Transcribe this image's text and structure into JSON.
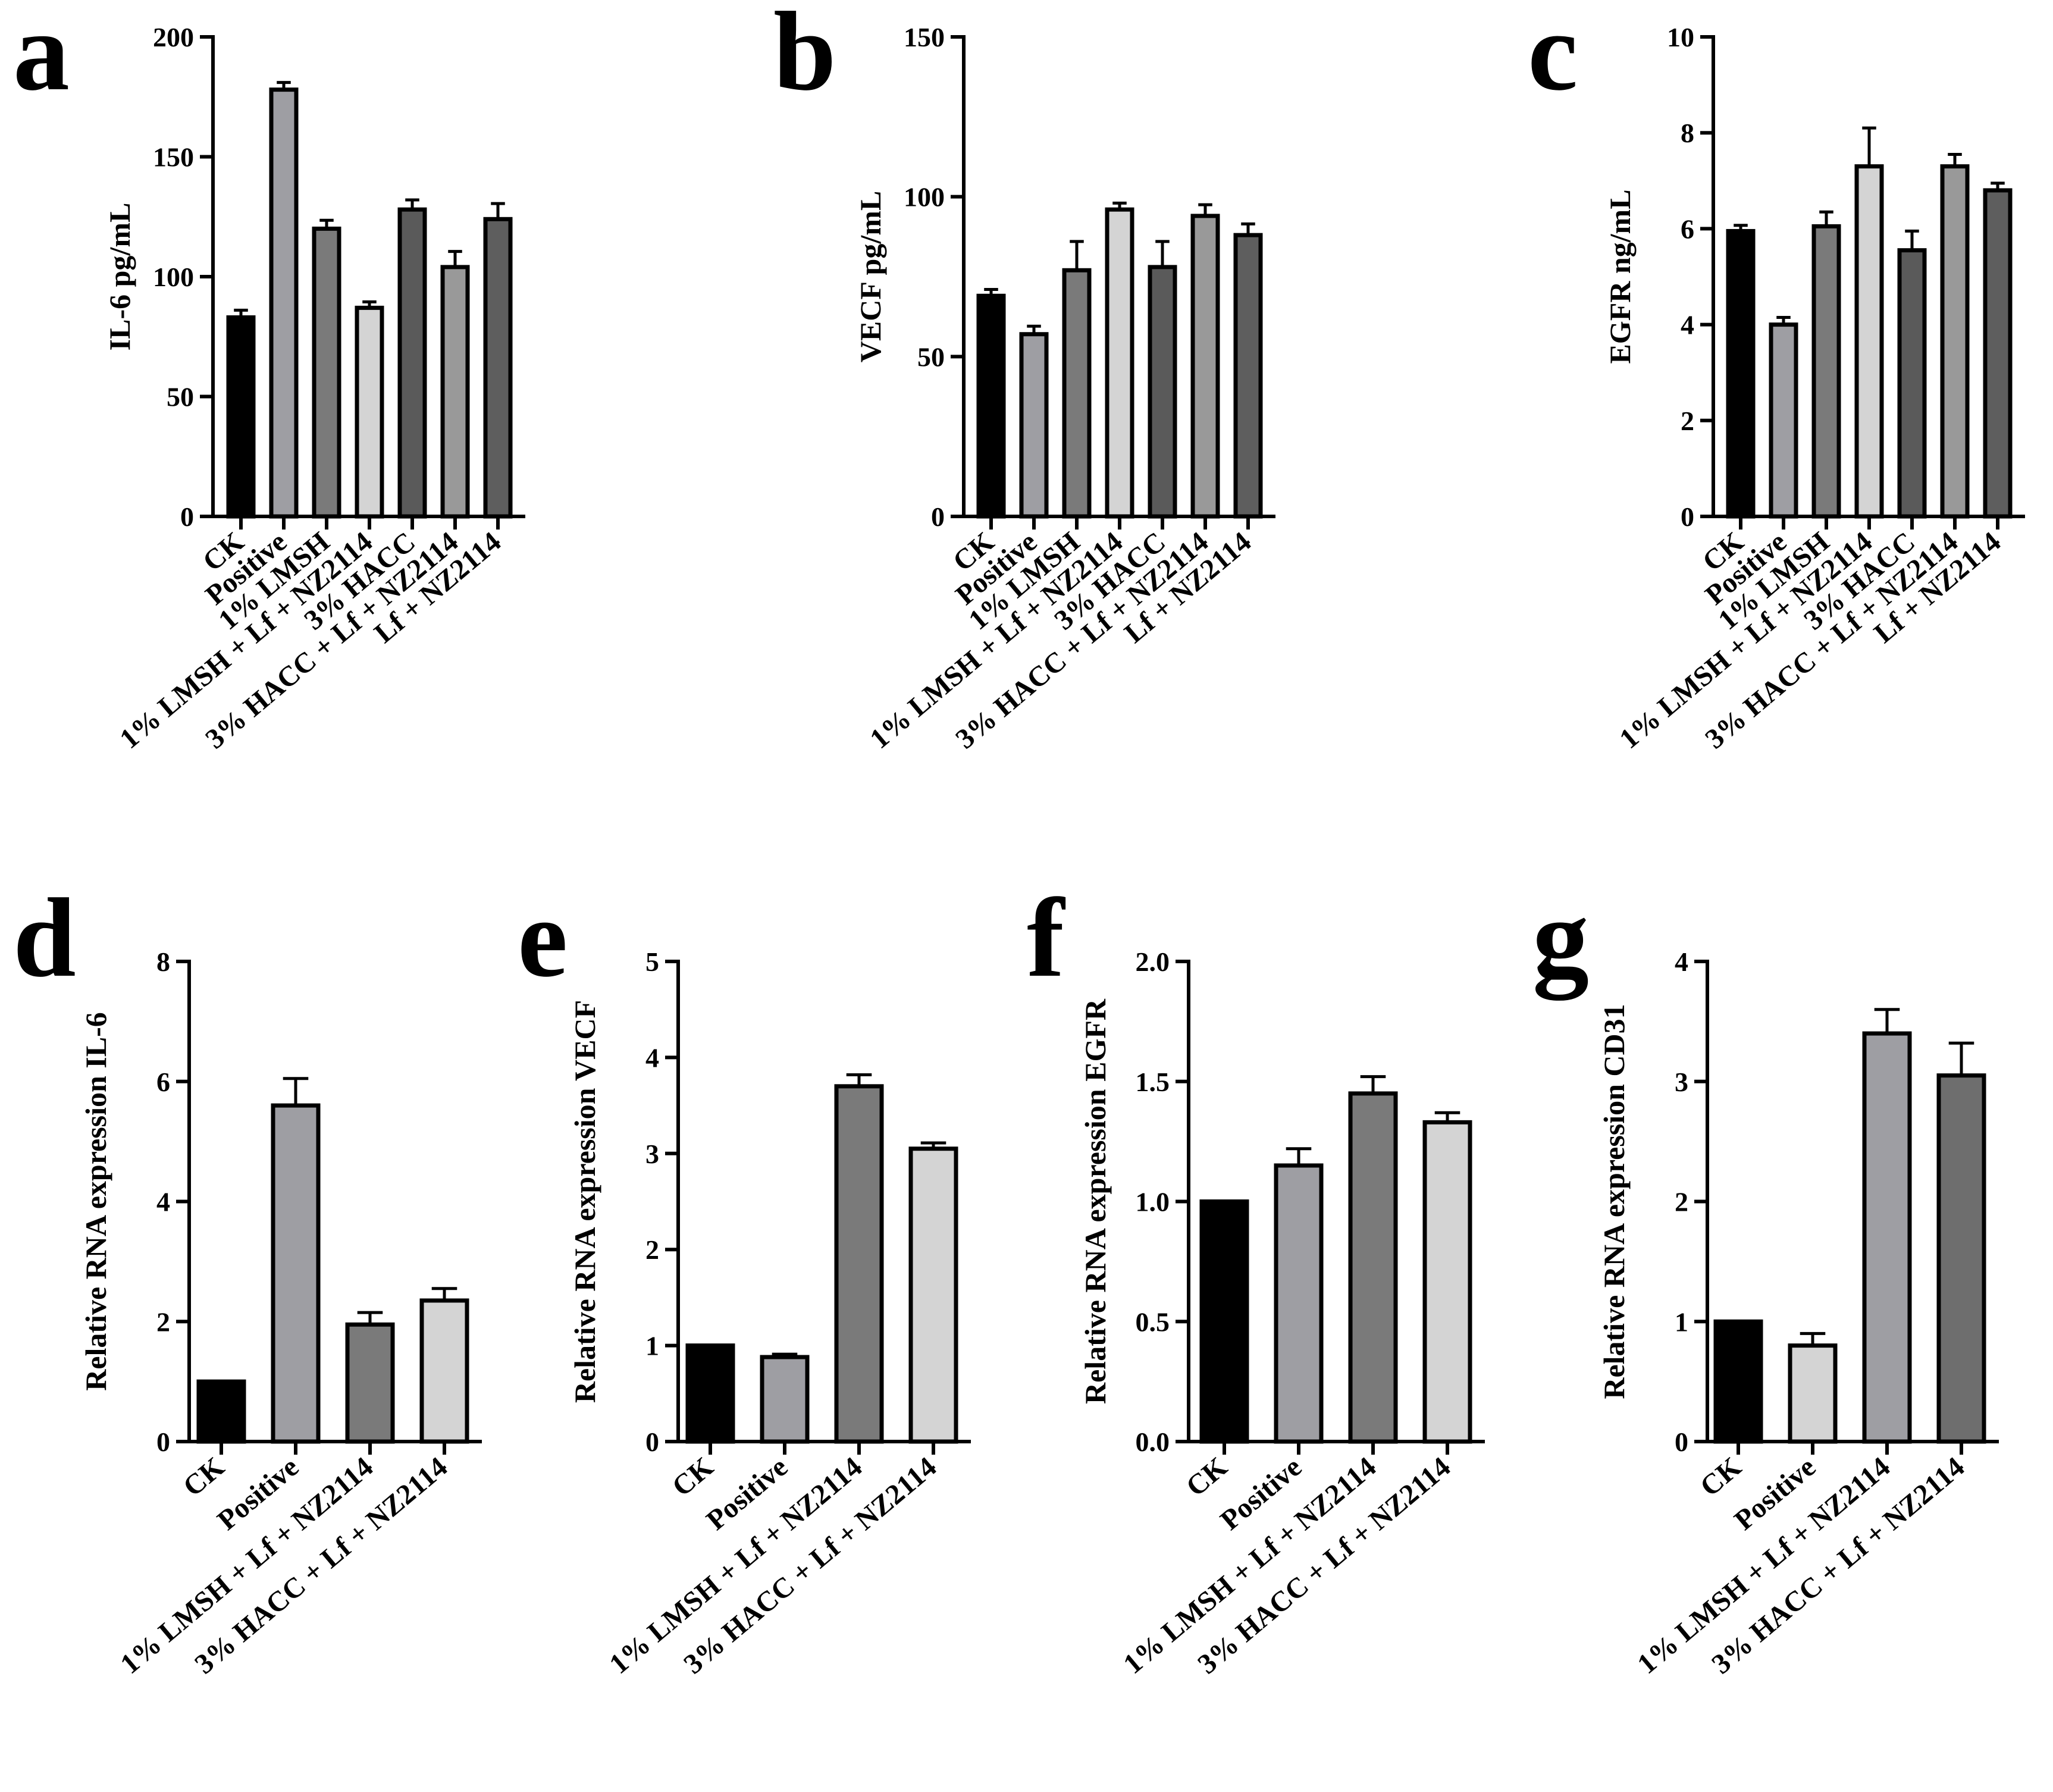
{
  "chart_data": [
    {
      "panel": "a",
      "type": "bar",
      "ylabel": "IL-6 pg/mL",
      "ylim": [
        0,
        200
      ],
      "yticks": [
        "0",
        "50",
        "100",
        "150",
        "200"
      ],
      "categories": [
        "CK",
        "Positive",
        "1% LMSH",
        "1% LMSH + Lf + NZ2114",
        "3% HACC",
        "3% HACC + Lf + NZ2114",
        "Lf + NZ2114"
      ],
      "values": [
        83,
        178,
        120,
        87,
        128,
        104,
        124
      ],
      "errors": [
        3,
        3,
        3.5,
        2.5,
        4,
        6.5,
        6.5
      ],
      "colors": [
        "#000000",
        "#9e9ea3",
        "#7a7a7a",
        "#d4d4d4",
        "#5a5a5a",
        "#999999",
        "#5e5e5e"
      ]
    },
    {
      "panel": "b",
      "type": "bar",
      "ylabel": "VECF pg/mL",
      "ylim": [
        0,
        150
      ],
      "yticks": [
        "0",
        "50",
        "100",
        "150"
      ],
      "categories": [
        "CK",
        "Positive",
        "1% LMSH",
        "1% LMSH + Lf + NZ2114",
        "3% HACC",
        "3% HACC + Lf + NZ2114",
        "Lf + NZ2114"
      ],
      "values": [
        69,
        57,
        77,
        96,
        78,
        94,
        88
      ],
      "errors": [
        2,
        2.5,
        9,
        2,
        8,
        3.5,
        3.5
      ],
      "colors": [
        "#000000",
        "#9e9ea3",
        "#7a7a7a",
        "#d4d4d4",
        "#5a5a5a",
        "#999999",
        "#5e5e5e"
      ]
    },
    {
      "panel": "c",
      "type": "bar",
      "ylabel": "EGFR ng/mL",
      "ylim": [
        0,
        10
      ],
      "yticks": [
        "0",
        "2",
        "4",
        "6",
        "8",
        "10"
      ],
      "categories": [
        "CK",
        "Positive",
        "1% LMSH",
        "1% LMSH + Lf + NZ2114",
        "3% HACC",
        "3% HACC + Lf + NZ2114",
        "Lf + NZ2114"
      ],
      "values": [
        5.95,
        4.0,
        6.05,
        7.3,
        5.55,
        7.3,
        6.8
      ],
      "errors": [
        0.12,
        0.15,
        0.3,
        0.8,
        0.4,
        0.25,
        0.15
      ],
      "colors": [
        "#000000",
        "#9e9ea3",
        "#7a7a7a",
        "#d4d4d4",
        "#5a5a5a",
        "#999999",
        "#5e5e5e"
      ]
    },
    {
      "panel": "d",
      "type": "bar",
      "ylabel": "Relative RNA expression IL-6",
      "ylim": [
        0,
        8
      ],
      "yticks": [
        "0",
        "2",
        "4",
        "6",
        "8"
      ],
      "categories": [
        "CK",
        "Positive",
        "1% LMSH + Lf + NZ2114",
        "3% HACC + Lf + NZ2114"
      ],
      "values": [
        1.0,
        5.6,
        1.95,
        2.35
      ],
      "errors": [
        0,
        0.45,
        0.2,
        0.2
      ],
      "colors": [
        "#000000",
        "#9e9ea3",
        "#7a7a7a",
        "#d4d4d4"
      ]
    },
    {
      "panel": "e",
      "type": "bar",
      "ylabel": "Relative RNA expression VECF",
      "ylim": [
        0,
        5
      ],
      "yticks": [
        "0",
        "1",
        "2",
        "3",
        "4",
        "5"
      ],
      "categories": [
        "CK",
        "Positive",
        "1% LMSH + Lf + NZ2114",
        "3% HACC + Lf + NZ2114"
      ],
      "values": [
        1.0,
        0.88,
        3.7,
        3.05
      ],
      "errors": [
        0,
        0.03,
        0.12,
        0.06
      ],
      "colors": [
        "#000000",
        "#9e9ea3",
        "#7a7a7a",
        "#d4d4d4"
      ]
    },
    {
      "panel": "f",
      "type": "bar",
      "ylabel": "Relative RNA expression EGFR",
      "ylim": [
        0,
        2.0
      ],
      "yticks": [
        "0.0",
        "0.5",
        "1.0",
        "1.5",
        "2.0"
      ],
      "categories": [
        "CK",
        "Positive",
        "1% LMSH + Lf + NZ2114",
        "3% HACC + Lf + NZ2114"
      ],
      "values": [
        1.0,
        1.15,
        1.45,
        1.33
      ],
      "errors": [
        0,
        0.07,
        0.07,
        0.04
      ],
      "colors": [
        "#000000",
        "#9e9ea3",
        "#7a7a7a",
        "#d4d4d4"
      ]
    },
    {
      "panel": "g",
      "type": "bar",
      "ylabel": "Relative RNA expression CD31",
      "ylim": [
        0,
        4
      ],
      "yticks": [
        "0",
        "1",
        "2",
        "3",
        "4"
      ],
      "categories": [
        "CK",
        "Positive",
        "1% LMSH + Lf + NZ2114",
        "3% HACC + Lf + NZ2114"
      ],
      "values": [
        1.0,
        0.8,
        3.4,
        3.05
      ],
      "errors": [
        0,
        0.1,
        0.2,
        0.27
      ],
      "colors": [
        "#000000",
        "#d4d4d4",
        "#9e9ea3",
        "#6e6e6e"
      ]
    }
  ]
}
